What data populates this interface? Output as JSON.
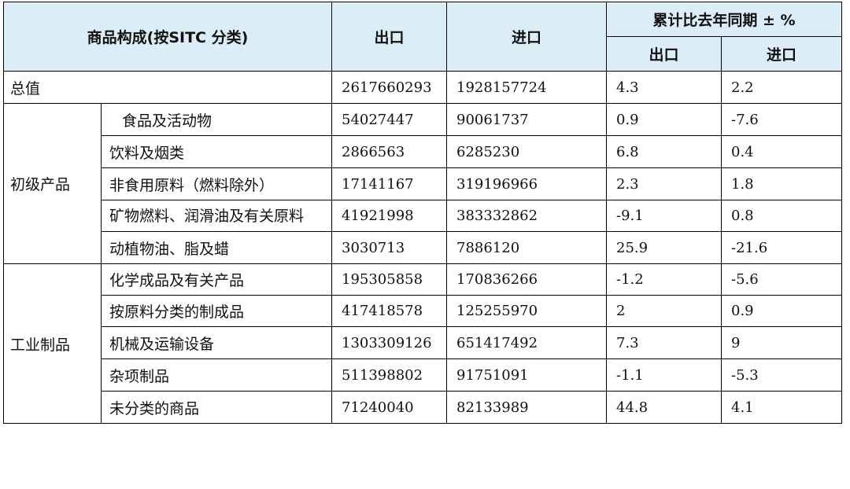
{
  "header": {
    "category": "商品构成(按SITC 分类)",
    "export": "出口",
    "import": "进口",
    "cumulative": "累计比去年同期 ± %",
    "sub_export": "出口",
    "sub_import": "进口"
  },
  "total": {
    "label": "总值",
    "export": "2617660293",
    "import": "1928157724",
    "export_pct": "4.3",
    "import_pct": "2.2"
  },
  "primary": {
    "label": "初级产品",
    "rows": [
      {
        "name": "食品及活动物",
        "export": "54027447",
        "import": "90061737",
        "export_pct": "0.9",
        "import_pct": "-7.6"
      },
      {
        "name": "饮料及烟类",
        "export": "2866563",
        "import": "6285230",
        "export_pct": "6.8",
        "import_pct": "0.4"
      },
      {
        "name": "非食用原料（燃料除外）",
        "export": "17141167",
        "import": "319196966",
        "export_pct": "2.3",
        "import_pct": "1.8"
      },
      {
        "name": "矿物燃料、润滑油及有关原料",
        "export": "41921998",
        "import": "383332862",
        "export_pct": "-9.1",
        "import_pct": "0.8"
      },
      {
        "name": "动植物油、脂及蜡",
        "export": "3030713",
        "import": "7886120",
        "export_pct": "25.9",
        "import_pct": "-21.6"
      }
    ]
  },
  "manufactured": {
    "label": "工业制品",
    "rows": [
      {
        "name": "化学成品及有关产品",
        "export": "195305858",
        "import": "170836266",
        "export_pct": "-1.2",
        "import_pct": "-5.6"
      },
      {
        "name": "按原料分类的制成品",
        "export": "417418578",
        "import": "125255970",
        "export_pct": "2",
        "import_pct": "0.9"
      },
      {
        "name": "机械及运输设备",
        "export": "1303309126",
        "import": "651417492",
        "export_pct": "7.3",
        "import_pct": "9"
      },
      {
        "name": "杂项制品",
        "export": "511398802",
        "import": "91751091",
        "export_pct": "-1.1",
        "import_pct": "-5.3"
      },
      {
        "name": "未分类的商品",
        "export": "71240040",
        "import": "82133989",
        "export_pct": "44.8",
        "import_pct": "4.1"
      }
    ]
  }
}
